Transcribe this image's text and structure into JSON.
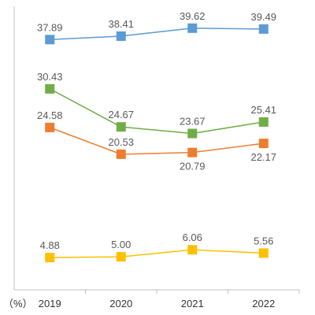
{
  "chart_data": {
    "type": "line",
    "title": "",
    "xlabel": "",
    "ylabel": "",
    "unit_label": "（%）",
    "categories": [
      "2019",
      "2020",
      "2021",
      "2022"
    ],
    "series": [
      {
        "color": "#5B9BD5",
        "values": [
          37.89,
          38.41,
          39.62,
          39.49
        ],
        "labels": [
          "37.89",
          "38.41",
          "39.62",
          "39.49"
        ],
        "label_position": [
          "above",
          "above",
          "above",
          "above"
        ]
      },
      {
        "color": "#70AD47",
        "values": [
          30.43,
          24.67,
          23.67,
          25.41
        ],
        "labels": [
          "30.43",
          "24.67",
          "23.67",
          "25.41"
        ],
        "label_position": [
          "above",
          "above",
          "above",
          "above"
        ]
      },
      {
        "color": "#ED7D31",
        "values": [
          24.58,
          20.53,
          20.79,
          22.17
        ],
        "labels": [
          "24.58",
          "20.53",
          "20.79",
          "22.17"
        ],
        "label_position": [
          "above",
          "above",
          "below",
          "below"
        ]
      },
      {
        "color": "#FFC000",
        "values": [
          4.88,
          5.0,
          6.06,
          5.56
        ],
        "labels": [
          "4.88",
          "5.00",
          "6.06",
          "5.56"
        ],
        "label_position": [
          "above",
          "above",
          "above",
          "above"
        ]
      }
    ],
    "ylim": [
      0,
      41.5
    ],
    "grid": false,
    "legend": "none",
    "axis_color": "#BFBFBF"
  }
}
